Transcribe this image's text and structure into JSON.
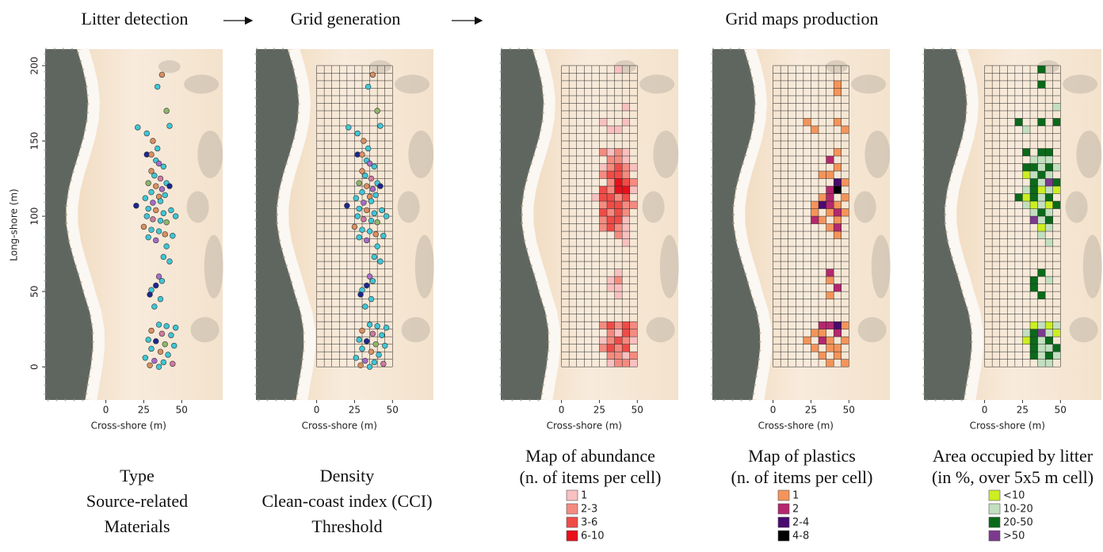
{
  "header": {
    "steps": [
      "Litter detection",
      "Grid generation",
      "Grid maps production"
    ]
  },
  "axes": {
    "x_label": "Cross-shore (m)",
    "y_label": "Long-shore (m)",
    "xlim": [
      -40,
      77
    ],
    "ylim": [
      -22,
      211
    ],
    "xticks": [
      0,
      25,
      50
    ],
    "yticks": [
      0,
      50,
      100,
      150,
      200
    ],
    "grid_cell": 5,
    "grid_xlim": [
      0,
      50
    ],
    "grid_ylim": [
      0,
      200
    ]
  },
  "points": {
    "colors": [
      "#3ec6d6",
      "#d99060",
      "#a66cc8",
      "#8fb56a",
      "#1c2790",
      "#d07aa0"
    ],
    "items": [
      [
        37,
        194,
        1
      ],
      [
        34,
        186,
        0
      ],
      [
        40,
        170,
        3
      ],
      [
        42,
        160,
        0
      ],
      [
        21,
        159,
        0
      ],
      [
        27,
        155,
        0
      ],
      [
        31,
        150,
        1
      ],
      [
        34,
        145,
        0
      ],
      [
        27,
        141,
        4
      ],
      [
        30,
        141,
        1
      ],
      [
        33,
        137,
        0
      ],
      [
        35,
        135,
        2
      ],
      [
        38,
        133,
        0
      ],
      [
        30,
        130,
        1
      ],
      [
        32,
        127,
        0
      ],
      [
        36,
        125,
        5
      ],
      [
        40,
        122,
        0
      ],
      [
        28,
        122,
        3
      ],
      [
        33,
        120,
        1
      ],
      [
        37,
        118,
        2
      ],
      [
        42,
        120,
        4
      ],
      [
        30,
        116,
        0
      ],
      [
        35,
        113,
        1
      ],
      [
        39,
        114,
        0
      ],
      [
        26,
        112,
        0
      ],
      [
        31,
        109,
        2
      ],
      [
        36,
        110,
        0
      ],
      [
        20,
        107,
        4
      ],
      [
        28,
        105,
        0
      ],
      [
        33,
        104,
        1
      ],
      [
        38,
        102,
        0
      ],
      [
        43,
        104,
        0
      ],
      [
        27,
        100,
        0
      ],
      [
        31,
        98,
        5
      ],
      [
        36,
        97,
        0
      ],
      [
        40,
        96,
        3
      ],
      [
        46,
        100,
        0
      ],
      [
        25,
        93,
        1
      ],
      [
        30,
        91,
        0
      ],
      [
        35,
        90,
        0
      ],
      [
        39,
        88,
        1
      ],
      [
        44,
        87,
        0
      ],
      [
        28,
        86,
        0
      ],
      [
        33,
        84,
        2
      ],
      [
        40,
        80,
        0
      ],
      [
        38,
        73,
        0
      ],
      [
        42,
        70,
        0
      ],
      [
        35,
        60,
        2
      ],
      [
        37,
        57,
        0
      ],
      [
        33,
        54,
        4
      ],
      [
        30,
        51,
        0
      ],
      [
        29,
        48,
        4
      ],
      [
        36,
        45,
        0
      ],
      [
        32,
        40,
        0
      ],
      [
        35,
        28,
        0
      ],
      [
        40,
        27,
        0
      ],
      [
        46,
        26,
        0
      ],
      [
        30,
        24,
        1
      ],
      [
        37,
        22,
        5
      ],
      [
        43,
        21,
        0
      ],
      [
        28,
        18,
        0
      ],
      [
        33,
        17,
        4
      ],
      [
        39,
        15,
        3
      ],
      [
        45,
        14,
        0
      ],
      [
        30,
        12,
        0
      ],
      [
        36,
        10,
        1
      ],
      [
        41,
        8,
        0
      ],
      [
        26,
        6,
        0
      ],
      [
        32,
        4,
        2
      ],
      [
        38,
        3,
        0
      ],
      [
        44,
        2,
        5
      ],
      [
        29,
        1,
        1
      ],
      [
        35,
        0,
        0
      ]
    ]
  },
  "captions": [
    [
      "Type",
      "Source-related",
      "Materials"
    ],
    [
      "Density",
      "Clean-coast index (CCI)",
      "Threshold"
    ]
  ],
  "maps": [
    {
      "title": [
        "Map of abundance",
        "(n. of items per cell)"
      ],
      "legend": [
        {
          "label": "1",
          "color": "#f9c0c0"
        },
        {
          "label": "2-3",
          "color": "#f58b80"
        },
        {
          "label": "3-6",
          "color": "#ef4c48"
        },
        {
          "label": "6-10",
          "color": "#e8101a"
        }
      ],
      "cells": [
        [
          35,
          195,
          0
        ],
        [
          40,
          170,
          0
        ],
        [
          40,
          160,
          0
        ],
        [
          25,
          160,
          0
        ],
        [
          30,
          155,
          0
        ],
        [
          35,
          155,
          0
        ],
        [
          25,
          140,
          1
        ],
        [
          30,
          140,
          0
        ],
        [
          35,
          140,
          1
        ],
        [
          40,
          140,
          0
        ],
        [
          30,
          135,
          1
        ],
        [
          35,
          135,
          1
        ],
        [
          40,
          135,
          0
        ],
        [
          25,
          130,
          0
        ],
        [
          30,
          130,
          1
        ],
        [
          35,
          130,
          2
        ],
        [
          40,
          130,
          1
        ],
        [
          45,
          130,
          0
        ],
        [
          25,
          125,
          1
        ],
        [
          30,
          125,
          2
        ],
        [
          35,
          125,
          2
        ],
        [
          40,
          125,
          1
        ],
        [
          30,
          120,
          1
        ],
        [
          35,
          120,
          3
        ],
        [
          40,
          120,
          2
        ],
        [
          45,
          120,
          1
        ],
        [
          25,
          115,
          2
        ],
        [
          30,
          115,
          1
        ],
        [
          35,
          115,
          3
        ],
        [
          40,
          115,
          3
        ],
        [
          45,
          115,
          0
        ],
        [
          20,
          110,
          0
        ],
        [
          25,
          110,
          2
        ],
        [
          30,
          110,
          2
        ],
        [
          35,
          110,
          1
        ],
        [
          40,
          110,
          2
        ],
        [
          25,
          105,
          1
        ],
        [
          30,
          105,
          2
        ],
        [
          35,
          105,
          2
        ],
        [
          40,
          105,
          1
        ],
        [
          45,
          105,
          1
        ],
        [
          25,
          100,
          2
        ],
        [
          30,
          100,
          1
        ],
        [
          35,
          100,
          2
        ],
        [
          40,
          100,
          1
        ],
        [
          25,
          95,
          1
        ],
        [
          30,
          95,
          2
        ],
        [
          35,
          95,
          2
        ],
        [
          40,
          95,
          0
        ],
        [
          25,
          90,
          1
        ],
        [
          30,
          90,
          2
        ],
        [
          35,
          90,
          1
        ],
        [
          40,
          90,
          0
        ],
        [
          35,
          85,
          1
        ],
        [
          40,
          85,
          0
        ],
        [
          40,
          80,
          0
        ],
        [
          35,
          60,
          0
        ],
        [
          30,
          55,
          0
        ],
        [
          35,
          55,
          1
        ],
        [
          30,
          50,
          0
        ],
        [
          35,
          50,
          0
        ],
        [
          35,
          45,
          0
        ],
        [
          25,
          25,
          1
        ],
        [
          30,
          25,
          2
        ],
        [
          35,
          25,
          1
        ],
        [
          40,
          25,
          2
        ],
        [
          45,
          25,
          1
        ],
        [
          30,
          20,
          1
        ],
        [
          35,
          20,
          0
        ],
        [
          40,
          20,
          2
        ],
        [
          45,
          20,
          1
        ],
        [
          25,
          15,
          0
        ],
        [
          30,
          15,
          1
        ],
        [
          35,
          15,
          2
        ],
        [
          40,
          15,
          1
        ],
        [
          45,
          15,
          0
        ],
        [
          25,
          10,
          1
        ],
        [
          30,
          10,
          2
        ],
        [
          35,
          10,
          1
        ],
        [
          40,
          10,
          2
        ],
        [
          30,
          5,
          1
        ],
        [
          35,
          5,
          1
        ],
        [
          40,
          5,
          0
        ],
        [
          45,
          5,
          1
        ],
        [
          30,
          0,
          0
        ],
        [
          35,
          0,
          1
        ],
        [
          40,
          0,
          1
        ],
        [
          45,
          0,
          0
        ]
      ]
    },
    {
      "title": [
        "Map of plastics",
        "(n. of items per cell)"
      ],
      "legend": [
        {
          "label": "1",
          "color": "#f4945a"
        },
        {
          "label": "2",
          "color": "#b5276e"
        },
        {
          "label": "2-4",
          "color": "#4a0a6e"
        },
        {
          "label": "4-8",
          "color": "#000000"
        }
      ],
      "cells": [
        [
          40,
          185,
          0
        ],
        [
          40,
          180,
          0
        ],
        [
          20,
          160,
          0
        ],
        [
          25,
          155,
          0
        ],
        [
          40,
          160,
          0
        ],
        [
          45,
          155,
          0
        ],
        [
          40,
          140,
          0
        ],
        [
          35,
          135,
          1
        ],
        [
          40,
          130,
          0
        ],
        [
          30,
          125,
          0
        ],
        [
          35,
          125,
          0
        ],
        [
          40,
          120,
          2
        ],
        [
          45,
          120,
          0
        ],
        [
          35,
          115,
          1
        ],
        [
          40,
          115,
          3
        ],
        [
          30,
          110,
          0
        ],
        [
          35,
          110,
          1
        ],
        [
          45,
          110,
          0
        ],
        [
          25,
          105,
          0
        ],
        [
          30,
          105,
          2
        ],
        [
          35,
          105,
          1
        ],
        [
          40,
          105,
          0
        ],
        [
          25,
          100,
          0
        ],
        [
          35,
          100,
          0
        ],
        [
          40,
          100,
          1
        ],
        [
          45,
          100,
          0
        ],
        [
          25,
          95,
          1
        ],
        [
          30,
          95,
          0
        ],
        [
          40,
          95,
          0
        ],
        [
          35,
          90,
          0
        ],
        [
          40,
          90,
          1
        ],
        [
          40,
          85,
          0
        ],
        [
          35,
          60,
          1
        ],
        [
          35,
          55,
          0
        ],
        [
          40,
          50,
          1
        ],
        [
          35,
          45,
          0
        ],
        [
          30,
          25,
          1
        ],
        [
          35,
          25,
          1
        ],
        [
          40,
          25,
          2
        ],
        [
          45,
          25,
          0
        ],
        [
          25,
          20,
          0
        ],
        [
          30,
          20,
          0
        ],
        [
          40,
          20,
          1
        ],
        [
          20,
          15,
          0
        ],
        [
          30,
          15,
          1
        ],
        [
          35,
          15,
          0
        ],
        [
          45,
          15,
          0
        ],
        [
          25,
          10,
          0
        ],
        [
          35,
          10,
          0
        ],
        [
          40,
          10,
          0
        ],
        [
          30,
          5,
          0
        ],
        [
          40,
          5,
          0
        ],
        [
          35,
          0,
          0
        ],
        [
          45,
          0,
          0
        ]
      ]
    },
    {
      "title": [
        "Area occupied by litter",
        "(in %, over 5x5 m cell)"
      ],
      "legend": [
        {
          "label": "<10",
          "color": "#ccee22"
        },
        {
          "label": "10-20",
          "color": "#c2dfc0"
        },
        {
          "label": "20-50",
          "color": "#0a6a1a"
        },
        {
          "label": ">50",
          "color": "#7b3a8e"
        }
      ],
      "cells": [
        [
          35,
          195,
          2
        ],
        [
          35,
          185,
          2
        ],
        [
          45,
          170,
          1
        ],
        [
          35,
          160,
          2
        ],
        [
          20,
          160,
          2
        ],
        [
          25,
          155,
          1
        ],
        [
          45,
          160,
          2
        ],
        [
          25,
          140,
          2
        ],
        [
          35,
          140,
          2
        ],
        [
          40,
          140,
          2
        ],
        [
          30,
          135,
          1
        ],
        [
          35,
          135,
          1
        ],
        [
          40,
          135,
          1
        ],
        [
          25,
          130,
          2
        ],
        [
          30,
          130,
          2
        ],
        [
          35,
          130,
          1
        ],
        [
          40,
          130,
          2
        ],
        [
          45,
          130,
          1
        ],
        [
          25,
          125,
          0
        ],
        [
          30,
          125,
          1
        ],
        [
          35,
          125,
          2
        ],
        [
          40,
          125,
          1
        ],
        [
          30,
          120,
          2
        ],
        [
          35,
          120,
          1
        ],
        [
          40,
          120,
          3
        ],
        [
          45,
          120,
          2
        ],
        [
          25,
          115,
          1
        ],
        [
          30,
          115,
          2
        ],
        [
          35,
          115,
          0
        ],
        [
          40,
          115,
          1
        ],
        [
          45,
          115,
          0
        ],
        [
          20,
          110,
          2
        ],
        [
          25,
          110,
          0
        ],
        [
          30,
          110,
          2
        ],
        [
          35,
          110,
          1
        ],
        [
          40,
          110,
          2
        ],
        [
          25,
          105,
          1
        ],
        [
          30,
          105,
          0
        ],
        [
          35,
          105,
          1
        ],
        [
          40,
          105,
          0
        ],
        [
          45,
          105,
          2
        ],
        [
          30,
          100,
          1
        ],
        [
          35,
          100,
          2
        ],
        [
          40,
          100,
          1
        ],
        [
          30,
          95,
          3
        ],
        [
          35,
          95,
          1
        ],
        [
          40,
          95,
          2
        ],
        [
          35,
          90,
          0
        ],
        [
          40,
          90,
          1
        ],
        [
          35,
          85,
          1
        ],
        [
          40,
          80,
          1
        ],
        [
          35,
          60,
          2
        ],
        [
          30,
          55,
          2
        ],
        [
          40,
          55,
          1
        ],
        [
          30,
          50,
          2
        ],
        [
          35,
          45,
          2
        ],
        [
          30,
          25,
          0
        ],
        [
          35,
          25,
          1
        ],
        [
          40,
          25,
          0
        ],
        [
          45,
          25,
          1
        ],
        [
          25,
          20,
          1
        ],
        [
          30,
          20,
          2
        ],
        [
          35,
          20,
          3
        ],
        [
          40,
          20,
          1
        ],
        [
          45,
          20,
          0
        ],
        [
          25,
          15,
          0
        ],
        [
          30,
          15,
          2
        ],
        [
          35,
          15,
          1
        ],
        [
          40,
          15,
          2
        ],
        [
          30,
          10,
          2
        ],
        [
          35,
          10,
          1
        ],
        [
          40,
          10,
          1
        ],
        [
          45,
          10,
          2
        ],
        [
          30,
          5,
          2
        ],
        [
          35,
          5,
          1
        ],
        [
          40,
          5,
          2
        ],
        [
          45,
          5,
          1
        ],
        [
          35,
          0,
          1
        ],
        [
          40,
          0,
          1
        ]
      ]
    }
  ]
}
